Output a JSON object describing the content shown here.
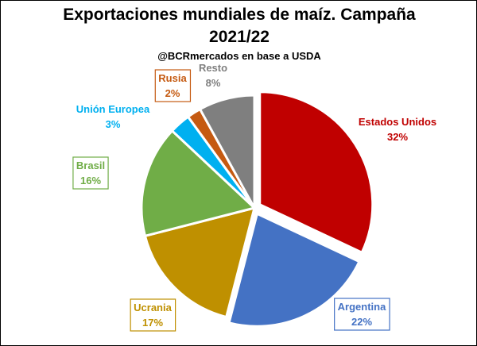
{
  "chart_data": {
    "type": "pie",
    "title_line1": "Exportaciones mundiales de maíz. Campaña",
    "title_line2": "2021/22",
    "subtitle": "@BCRmercados en base a USDA",
    "start_angle_deg": 0,
    "slices": [
      {
        "name": "Estados Unidos",
        "value": 32,
        "label": "32%",
        "color": "#c00000",
        "explode": true
      },
      {
        "name": "Argentina",
        "value": 22,
        "label": "22%",
        "color": "#4472c4",
        "explode": true
      },
      {
        "name": "Ucrania",
        "value": 17,
        "label": "17%",
        "color": "#bf9000",
        "explode": false
      },
      {
        "name": "Brasil",
        "value": 16,
        "label": "16%",
        "color": "#70ad47",
        "explode": false
      },
      {
        "name": "Unión Europea",
        "value": 3,
        "label": "3%",
        "color": "#00b0f0",
        "explode": false
      },
      {
        "name": "Rusia",
        "value": 2,
        "label": "2%",
        "color": "#c55a11",
        "explode": false
      },
      {
        "name": "Resto",
        "value": 8,
        "label": "8%",
        "color": "#7f7f7f",
        "explode": false
      }
    ]
  }
}
